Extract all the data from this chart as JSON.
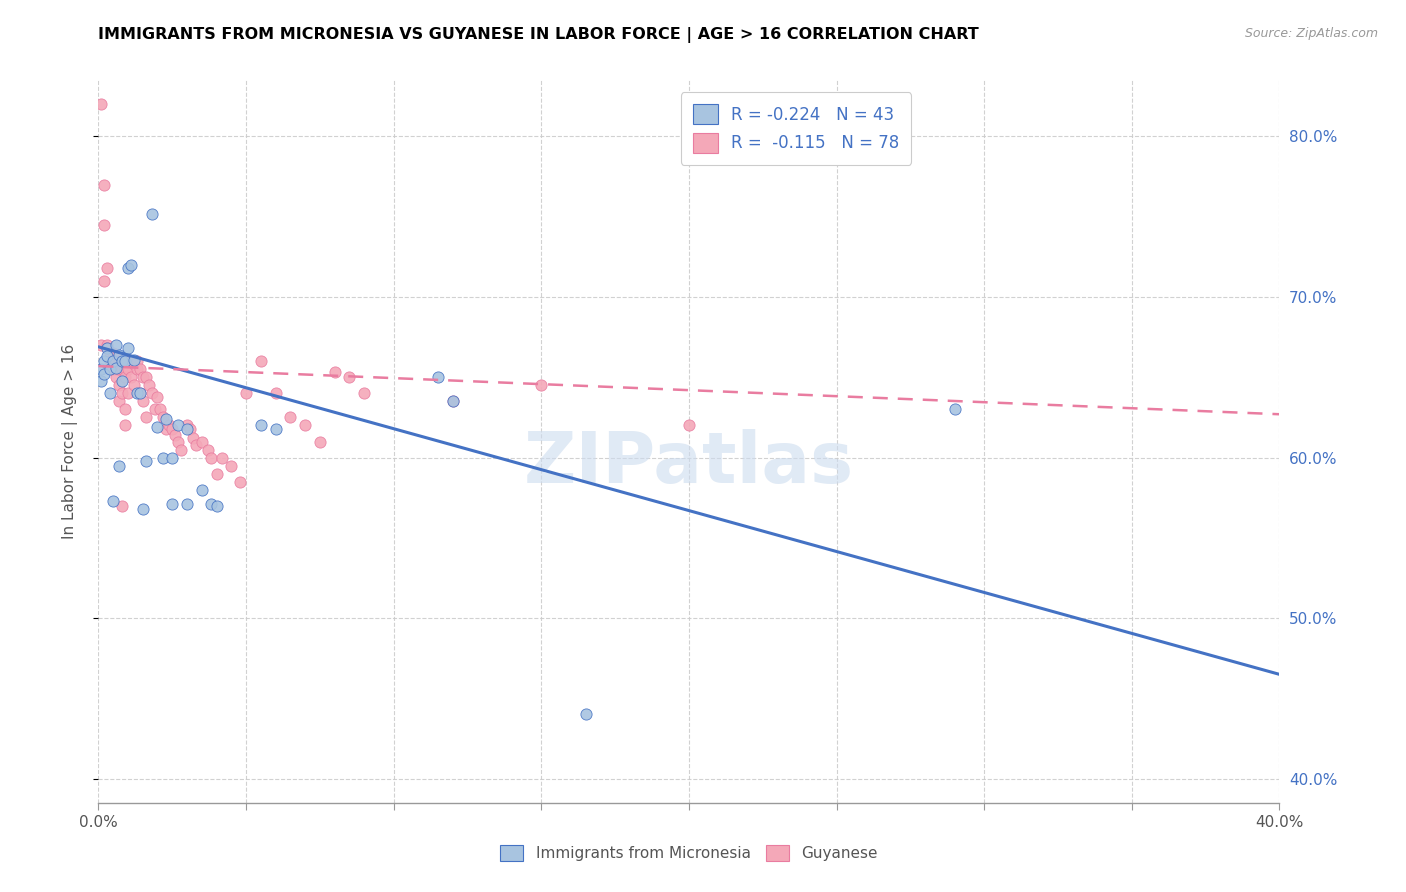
{
  "title": "IMMIGRANTS FROM MICRONESIA VS GUYANESE IN LABOR FORCE | AGE > 16 CORRELATION CHART",
  "source": "Source: ZipAtlas.com",
  "ylabel": "In Labor Force | Age > 16",
  "y_ticks": [
    0.4,
    0.5,
    0.6,
    0.7,
    0.8
  ],
  "y_tick_labels_right": [
    "40.0%",
    "50.0%",
    "60.0%",
    "70.0%",
    "80.0%"
  ],
  "xlim": [
    0.0,
    0.4
  ],
  "ylim": [
    0.385,
    0.835
  ],
  "x_tick_positions": [
    0.0,
    0.05,
    0.1,
    0.15,
    0.2,
    0.25,
    0.3,
    0.35,
    0.4
  ],
  "x_tick_labels": [
    "0.0%",
    "",
    "",
    "",
    "",
    "",
    "",
    "",
    "40.0%"
  ],
  "micronesia_color": "#a8c4e0",
  "guyanese_color": "#f4a8b8",
  "micronesia_line_color": "#4472c4",
  "guyanese_line_color": "#e97ca0",
  "legend_R_micronesia": "R = -0.224",
  "legend_N_micronesia": "N = 43",
  "legend_R_guyanese": "R =  -0.115",
  "legend_N_guyanese": "N = 78",
  "watermark": "ZIPatlas",
  "micronesia_points": [
    [
      0.001,
      0.655
    ],
    [
      0.001,
      0.648
    ],
    [
      0.002,
      0.66
    ],
    [
      0.002,
      0.652
    ],
    [
      0.003,
      0.668
    ],
    [
      0.003,
      0.663
    ],
    [
      0.004,
      0.64
    ],
    [
      0.004,
      0.655
    ],
    [
      0.005,
      0.66
    ],
    [
      0.005,
      0.573
    ],
    [
      0.006,
      0.67
    ],
    [
      0.006,
      0.656
    ],
    [
      0.007,
      0.664
    ],
    [
      0.007,
      0.595
    ],
    [
      0.008,
      0.66
    ],
    [
      0.008,
      0.648
    ],
    [
      0.009,
      0.66
    ],
    [
      0.01,
      0.668
    ],
    [
      0.01,
      0.718
    ],
    [
      0.011,
      0.72
    ],
    [
      0.012,
      0.661
    ],
    [
      0.013,
      0.64
    ],
    [
      0.014,
      0.64
    ],
    [
      0.015,
      0.568
    ],
    [
      0.016,
      0.598
    ],
    [
      0.018,
      0.752
    ],
    [
      0.02,
      0.619
    ],
    [
      0.022,
      0.6
    ],
    [
      0.023,
      0.624
    ],
    [
      0.025,
      0.6
    ],
    [
      0.025,
      0.571
    ],
    [
      0.027,
      0.62
    ],
    [
      0.03,
      0.618
    ],
    [
      0.03,
      0.571
    ],
    [
      0.035,
      0.58
    ],
    [
      0.038,
      0.571
    ],
    [
      0.04,
      0.57
    ],
    [
      0.055,
      0.62
    ],
    [
      0.06,
      0.618
    ],
    [
      0.115,
      0.65
    ],
    [
      0.12,
      0.635
    ],
    [
      0.165,
      0.44
    ],
    [
      0.29,
      0.63
    ]
  ],
  "guyanese_points": [
    [
      0.001,
      0.82
    ],
    [
      0.001,
      0.67
    ],
    [
      0.002,
      0.77
    ],
    [
      0.002,
      0.745
    ],
    [
      0.002,
      0.71
    ],
    [
      0.003,
      0.718
    ],
    [
      0.003,
      0.67
    ],
    [
      0.003,
      0.668
    ],
    [
      0.004,
      0.665
    ],
    [
      0.004,
      0.66
    ],
    [
      0.005,
      0.665
    ],
    [
      0.005,
      0.66
    ],
    [
      0.005,
      0.655
    ],
    [
      0.006,
      0.66
    ],
    [
      0.006,
      0.655
    ],
    [
      0.006,
      0.65
    ],
    [
      0.007,
      0.66
    ],
    [
      0.007,
      0.655
    ],
    [
      0.007,
      0.645
    ],
    [
      0.007,
      0.635
    ],
    [
      0.008,
      0.66
    ],
    [
      0.008,
      0.655
    ],
    [
      0.008,
      0.64
    ],
    [
      0.008,
      0.57
    ],
    [
      0.009,
      0.655
    ],
    [
      0.009,
      0.65
    ],
    [
      0.009,
      0.63
    ],
    [
      0.009,
      0.62
    ],
    [
      0.01,
      0.66
    ],
    [
      0.01,
      0.655
    ],
    [
      0.01,
      0.64
    ],
    [
      0.011,
      0.66
    ],
    [
      0.011,
      0.65
    ],
    [
      0.012,
      0.658
    ],
    [
      0.012,
      0.645
    ],
    [
      0.013,
      0.66
    ],
    [
      0.013,
      0.655
    ],
    [
      0.014,
      0.655
    ],
    [
      0.014,
      0.64
    ],
    [
      0.015,
      0.65
    ],
    [
      0.015,
      0.635
    ],
    [
      0.016,
      0.65
    ],
    [
      0.016,
      0.625
    ],
    [
      0.017,
      0.645
    ],
    [
      0.018,
      0.64
    ],
    [
      0.019,
      0.63
    ],
    [
      0.02,
      0.638
    ],
    [
      0.021,
      0.63
    ],
    [
      0.022,
      0.625
    ],
    [
      0.023,
      0.618
    ],
    [
      0.024,
      0.62
    ],
    [
      0.025,
      0.618
    ],
    [
      0.026,
      0.614
    ],
    [
      0.027,
      0.61
    ],
    [
      0.028,
      0.605
    ],
    [
      0.03,
      0.62
    ],
    [
      0.031,
      0.618
    ],
    [
      0.032,
      0.612
    ],
    [
      0.033,
      0.608
    ],
    [
      0.035,
      0.61
    ],
    [
      0.037,
      0.605
    ],
    [
      0.038,
      0.6
    ],
    [
      0.04,
      0.59
    ],
    [
      0.042,
      0.6
    ],
    [
      0.045,
      0.595
    ],
    [
      0.048,
      0.585
    ],
    [
      0.05,
      0.64
    ],
    [
      0.055,
      0.66
    ],
    [
      0.06,
      0.64
    ],
    [
      0.065,
      0.625
    ],
    [
      0.07,
      0.62
    ],
    [
      0.075,
      0.61
    ],
    [
      0.08,
      0.653
    ],
    [
      0.085,
      0.65
    ],
    [
      0.09,
      0.64
    ],
    [
      0.12,
      0.635
    ],
    [
      0.15,
      0.645
    ],
    [
      0.2,
      0.62
    ]
  ],
  "micronesia_trendline": [
    [
      0.0,
      0.669
    ],
    [
      0.4,
      0.465
    ]
  ],
  "guyanese_trendline": [
    [
      0.0,
      0.657
    ],
    [
      0.4,
      0.627
    ]
  ]
}
